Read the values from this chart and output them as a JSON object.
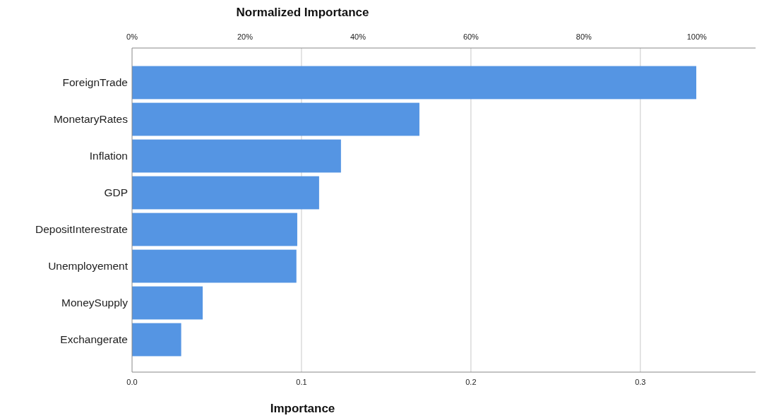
{
  "chart_data": {
    "type": "bar",
    "orientation": "horizontal",
    "xlabel": "Importance",
    "x2label": "Normalized Importance",
    "categories": [
      "ForeignTrade",
      "MonetaryRates",
      "Inflation",
      "GDP",
      "DepositInterestrate",
      "Unemployement",
      "MoneySupply",
      "Exchangerate"
    ],
    "values": [
      0.333,
      0.1696,
      0.1233,
      0.1104,
      0.0975,
      0.097,
      0.0417,
      0.029
    ],
    "color": "#5595e3",
    "xlim": [
      0,
      0.368
    ],
    "xticks": [
      {
        "value": 0,
        "label": "0.0"
      },
      0.1,
      0.2,
      0.3
    ],
    "x2lim": [
      0,
      110.4
    ],
    "x2ticks": [
      {
        "value": 0,
        "label": "0%"
      },
      {
        "value": 20,
        "label": "20%"
      },
      {
        "value": 40,
        "label": "40%"
      },
      {
        "value": 60,
        "label": "60%"
      },
      {
        "value": 80,
        "label": "80%"
      },
      {
        "value": 100,
        "label": "100%"
      }
    ],
    "grid": "x"
  }
}
